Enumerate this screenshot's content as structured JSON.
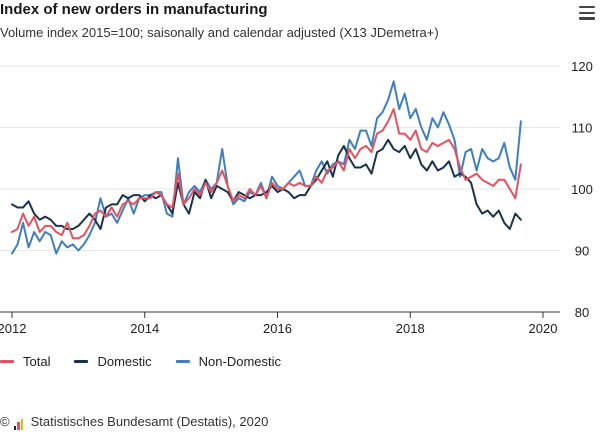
{
  "header": {
    "title": "Index of new orders in manufacturing",
    "subtitle": "Volume index 2015=100; saisonally and calendar adjusted (X13 JDemetra+)",
    "menu_icon": "hamburger-menu-icon"
  },
  "colors": {
    "total": "#e4525f",
    "domestic": "#1a334d",
    "non_domestic": "#3f7fbf",
    "gridline": "#e6e6e6",
    "axis": "#333333",
    "text": "#222222"
  },
  "footer": {
    "copyright": "©",
    "source": "Statistisches Bundesamt (Destatis), 2020",
    "logo_icon": "destatis-logo-icon"
  },
  "chart_data": {
    "type": "line",
    "title": "Index of new orders in manufacturing",
    "subtitle": "Volume index 2015=100; saisonally and calendar adjusted (X13 JDemetra+)",
    "xlabel": "",
    "ylabel": "",
    "x_start": "2012-01",
    "x_frequency": "monthly",
    "xlim": [
      "2012-01",
      "2020-01"
    ],
    "x_ticks": [
      "2012",
      "2014",
      "2016",
      "2018",
      "2020"
    ],
    "ylim": [
      80,
      120
    ],
    "y_ticks": [
      80,
      90,
      100,
      110,
      120
    ],
    "grid": "horizontal",
    "legend": "bottom",
    "series": [
      {
        "name": "Total",
        "color": "#e4525f",
        "values": [
          93.0,
          93.5,
          96.0,
          94.0,
          95.5,
          93.0,
          94.0,
          94.0,
          93.0,
          92.5,
          94.5,
          92.0,
          92.0,
          92.5,
          94.0,
          96.0,
          96.5,
          95.5,
          97.0,
          95.5,
          97.5,
          98.0,
          97.5,
          98.5,
          98.5,
          98.5,
          99.5,
          99.0,
          97.5,
          97.0,
          102.5,
          97.5,
          98.5,
          100.0,
          99.0,
          101.0,
          99.5,
          101.0,
          103.0,
          100.5,
          98.0,
          99.0,
          98.5,
          100.0,
          99.0,
          100.5,
          98.5,
          101.0,
          100.0,
          100.0,
          101.0,
          100.5,
          101.0,
          100.5,
          100.5,
          102.0,
          101.0,
          103.0,
          103.5,
          104.5,
          103.0,
          106.5,
          105.0,
          106.5,
          107.0,
          106.0,
          109.0,
          109.5,
          111.0,
          113.0,
          109.0,
          109.0,
          108.0,
          109.5,
          106.5,
          106.0,
          107.5,
          107.0,
          107.5,
          108.0,
          106.5,
          103.5,
          101.5,
          102.0,
          102.5,
          101.5,
          101.0,
          100.5,
          101.5,
          101.5,
          100.0,
          98.5,
          104.0
        ]
      },
      {
        "name": "Domestic",
        "color": "#1a334d",
        "values": [
          97.5,
          97.0,
          97.0,
          98.0,
          96.0,
          95.0,
          95.5,
          95.0,
          94.0,
          94.0,
          93.5,
          93.5,
          94.0,
          95.0,
          96.0,
          95.0,
          93.5,
          97.0,
          97.5,
          97.5,
          99.0,
          98.5,
          99.0,
          99.0,
          98.0,
          99.0,
          98.5,
          99.0,
          97.5,
          96.0,
          101.0,
          97.5,
          96.0,
          99.5,
          98.5,
          101.5,
          98.5,
          100.5,
          100.0,
          99.5,
          98.0,
          99.5,
          99.0,
          98.5,
          99.0,
          99.0,
          99.5,
          100.5,
          99.5,
          100.0,
          99.5,
          98.5,
          99.0,
          99.0,
          100.5,
          101.5,
          103.0,
          104.5,
          102.0,
          105.5,
          107.0,
          105.0,
          103.5,
          103.5,
          104.0,
          102.5,
          106.0,
          106.5,
          108.0,
          106.5,
          106.0,
          107.0,
          105.0,
          106.5,
          104.0,
          103.0,
          104.5,
          103.0,
          103.5,
          104.5,
          102.0,
          102.5,
          102.0,
          101.0,
          97.5,
          96.0,
          96.5,
          95.5,
          96.5,
          94.5,
          93.5,
          96.0,
          95.0
        ]
      },
      {
        "name": "Non-Domestic",
        "color": "#3f7fbf",
        "values": [
          89.5,
          91.0,
          94.5,
          90.5,
          93.0,
          91.5,
          93.0,
          92.5,
          89.5,
          91.5,
          90.5,
          91.0,
          90.0,
          91.0,
          92.5,
          94.5,
          98.5,
          95.5,
          96.0,
          94.5,
          96.5,
          98.5,
          96.0,
          98.5,
          99.0,
          99.0,
          99.5,
          99.5,
          96.0,
          95.5,
          105.0,
          97.5,
          99.5,
          100.5,
          99.5,
          101.5,
          100.0,
          101.0,
          106.5,
          100.5,
          97.5,
          98.5,
          98.0,
          99.5,
          99.0,
          101.0,
          98.5,
          102.0,
          100.5,
          100.0,
          101.0,
          102.0,
          103.0,
          100.5,
          100.5,
          103.0,
          104.5,
          102.5,
          104.0,
          104.5,
          104.0,
          108.0,
          106.5,
          109.5,
          109.5,
          107.0,
          111.5,
          112.5,
          114.5,
          117.5,
          113.0,
          115.5,
          111.5,
          113.0,
          110.0,
          108.0,
          111.5,
          110.0,
          112.5,
          110.5,
          108.0,
          102.0,
          106.0,
          106.5,
          103.0,
          106.5,
          105.0,
          104.5,
          105.0,
          107.5,
          103.5,
          101.5,
          111.0
        ]
      }
    ]
  }
}
